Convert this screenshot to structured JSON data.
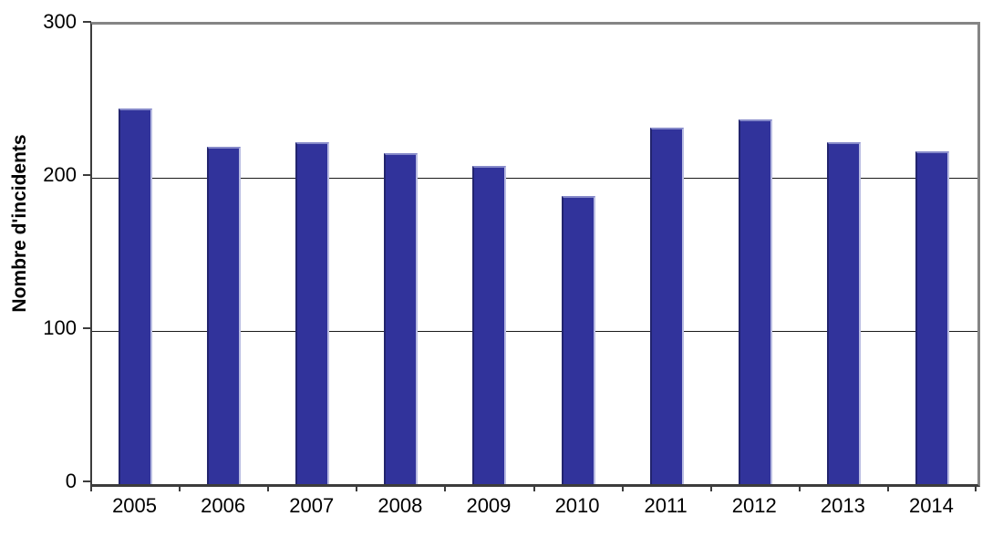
{
  "chart_data": {
    "type": "bar",
    "title": "",
    "xlabel": "",
    "ylabel": "Nombre d'incidents",
    "categories": [
      "2005",
      "2006",
      "2007",
      "2008",
      "2009",
      "2010",
      "2011",
      "2012",
      "2013",
      "2014"
    ],
    "values": [
      245,
      220,
      223,
      216,
      208,
      188,
      233,
      238,
      223,
      217
    ],
    "ylim": [
      0,
      300
    ],
    "yticks": [
      0,
      100,
      200,
      300
    ],
    "grid": true,
    "legend": false,
    "bar_color": "#31339b",
    "gridline_color": "#1a1a1a",
    "outer_border_color": "#858585",
    "axis_color": "#3c3c3c"
  }
}
